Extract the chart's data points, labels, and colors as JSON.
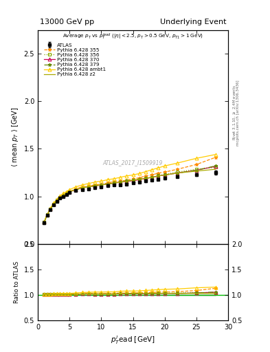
{
  "title_left": "13000 GeV pp",
  "title_right": "Underlying Event",
  "annotation": "ATLAS_2017_I1509919",
  "subtitle": "Average $p_{T}$ vs $p_{T}^{lead}$ ($|\\eta| < 2.5$, $p_{T} > 0.5$ GeV, $p_{T1} > 1$ GeV)",
  "ylabel_main": "$\\langle$ mean $p_{T}$ $\\rangle$ [GeV]",
  "ylabel_ratio": "Ratio to ATLAS",
  "xlabel": "$p_{T}^{l}$ead [GeV]",
  "right_label1": "Rivet 3.1.10, $\\geq$ 2.4M events",
  "right_label2": "mcplots.cern.ch [arXiv:1306.3436]",
  "ylim_main": [
    0.5,
    2.75
  ],
  "ylim_ratio": [
    0.5,
    2.0
  ],
  "xlim": [
    0,
    30
  ],
  "yticks_main": [
    0.5,
    1.0,
    1.5,
    2.0,
    2.5
  ],
  "yticks_ratio": [
    0.5,
    1.0,
    1.5,
    2.0
  ],
  "xticks": [
    0,
    5,
    10,
    15,
    20,
    25,
    30
  ],
  "x_atlas": [
    1.0,
    1.5,
    2.0,
    2.5,
    3.0,
    3.5,
    4.0,
    4.5,
    5.0,
    6.0,
    7.0,
    8.0,
    9.0,
    10.0,
    11.0,
    12.0,
    13.0,
    14.0,
    15.0,
    16.0,
    17.0,
    18.0,
    19.0,
    20.0,
    22.0,
    25.0,
    28.0
  ],
  "y_atlas": [
    0.72,
    0.8,
    0.86,
    0.91,
    0.95,
    0.98,
    1.0,
    1.02,
    1.04,
    1.06,
    1.07,
    1.08,
    1.09,
    1.1,
    1.11,
    1.12,
    1.12,
    1.13,
    1.14,
    1.15,
    1.16,
    1.17,
    1.18,
    1.19,
    1.21,
    1.23,
    1.25
  ],
  "y_err_atlas": [
    0.015,
    0.012,
    0.01,
    0.01,
    0.008,
    0.008,
    0.008,
    0.007,
    0.007,
    0.007,
    0.007,
    0.007,
    0.007,
    0.007,
    0.007,
    0.007,
    0.008,
    0.008,
    0.008,
    0.009,
    0.009,
    0.01,
    0.01,
    0.011,
    0.013,
    0.016,
    0.02
  ],
  "series": [
    {
      "label": "Pythia 6.428 355",
      "color": "#ff8c00",
      "marker": "*",
      "linestyle": "--",
      "y": [
        0.73,
        0.81,
        0.87,
        0.92,
        0.96,
        0.99,
        1.01,
        1.03,
        1.05,
        1.08,
        1.1,
        1.11,
        1.12,
        1.13,
        1.14,
        1.155,
        1.16,
        1.17,
        1.185,
        1.195,
        1.215,
        1.225,
        1.245,
        1.255,
        1.285,
        1.335,
        1.41
      ]
    },
    {
      "label": "Pythia 6.428 356",
      "color": "#88aa00",
      "marker": "s",
      "linestyle": ":",
      "y": [
        0.73,
        0.81,
        0.87,
        0.92,
        0.96,
        0.99,
        1.01,
        1.03,
        1.05,
        1.07,
        1.09,
        1.1,
        1.11,
        1.12,
        1.13,
        1.14,
        1.15,
        1.16,
        1.17,
        1.18,
        1.19,
        1.2,
        1.22,
        1.23,
        1.255,
        1.285,
        1.305
      ]
    },
    {
      "label": "Pythia 6.428 370",
      "color": "#cc0055",
      "marker": "^",
      "linestyle": "-",
      "y": [
        0.73,
        0.81,
        0.87,
        0.92,
        0.96,
        0.99,
        1.01,
        1.03,
        1.05,
        1.07,
        1.09,
        1.1,
        1.11,
        1.12,
        1.13,
        1.14,
        1.15,
        1.155,
        1.165,
        1.175,
        1.19,
        1.2,
        1.215,
        1.225,
        1.245,
        1.275,
        1.315
      ]
    },
    {
      "label": "Pythia 6.428 379",
      "color": "#668800",
      "marker": "*",
      "linestyle": "-.",
      "y": [
        0.73,
        0.81,
        0.87,
        0.92,
        0.96,
        0.99,
        1.01,
        1.03,
        1.05,
        1.07,
        1.09,
        1.1,
        1.11,
        1.12,
        1.13,
        1.14,
        1.15,
        1.16,
        1.17,
        1.18,
        1.19,
        1.2,
        1.215,
        1.225,
        1.245,
        1.275,
        1.32
      ]
    },
    {
      "label": "Pythia 6.428 ambt1",
      "color": "#ffcc00",
      "marker": "^",
      "linestyle": "-",
      "y": [
        0.73,
        0.81,
        0.875,
        0.93,
        0.97,
        1.005,
        1.03,
        1.05,
        1.07,
        1.1,
        1.12,
        1.135,
        1.15,
        1.16,
        1.175,
        1.185,
        1.2,
        1.215,
        1.225,
        1.24,
        1.26,
        1.28,
        1.3,
        1.32,
        1.35,
        1.4,
        1.44
      ]
    },
    {
      "label": "Pythia 6.428 z2",
      "color": "#aaaa00",
      "marker": "None",
      "linestyle": "-",
      "y": [
        0.73,
        0.81,
        0.87,
        0.92,
        0.96,
        0.99,
        1.01,
        1.03,
        1.05,
        1.07,
        1.09,
        1.1,
        1.11,
        1.12,
        1.13,
        1.14,
        1.15,
        1.16,
        1.17,
        1.18,
        1.19,
        1.2,
        1.215,
        1.225,
        1.245,
        1.265,
        1.285
      ]
    }
  ],
  "background_color": "#ffffff"
}
